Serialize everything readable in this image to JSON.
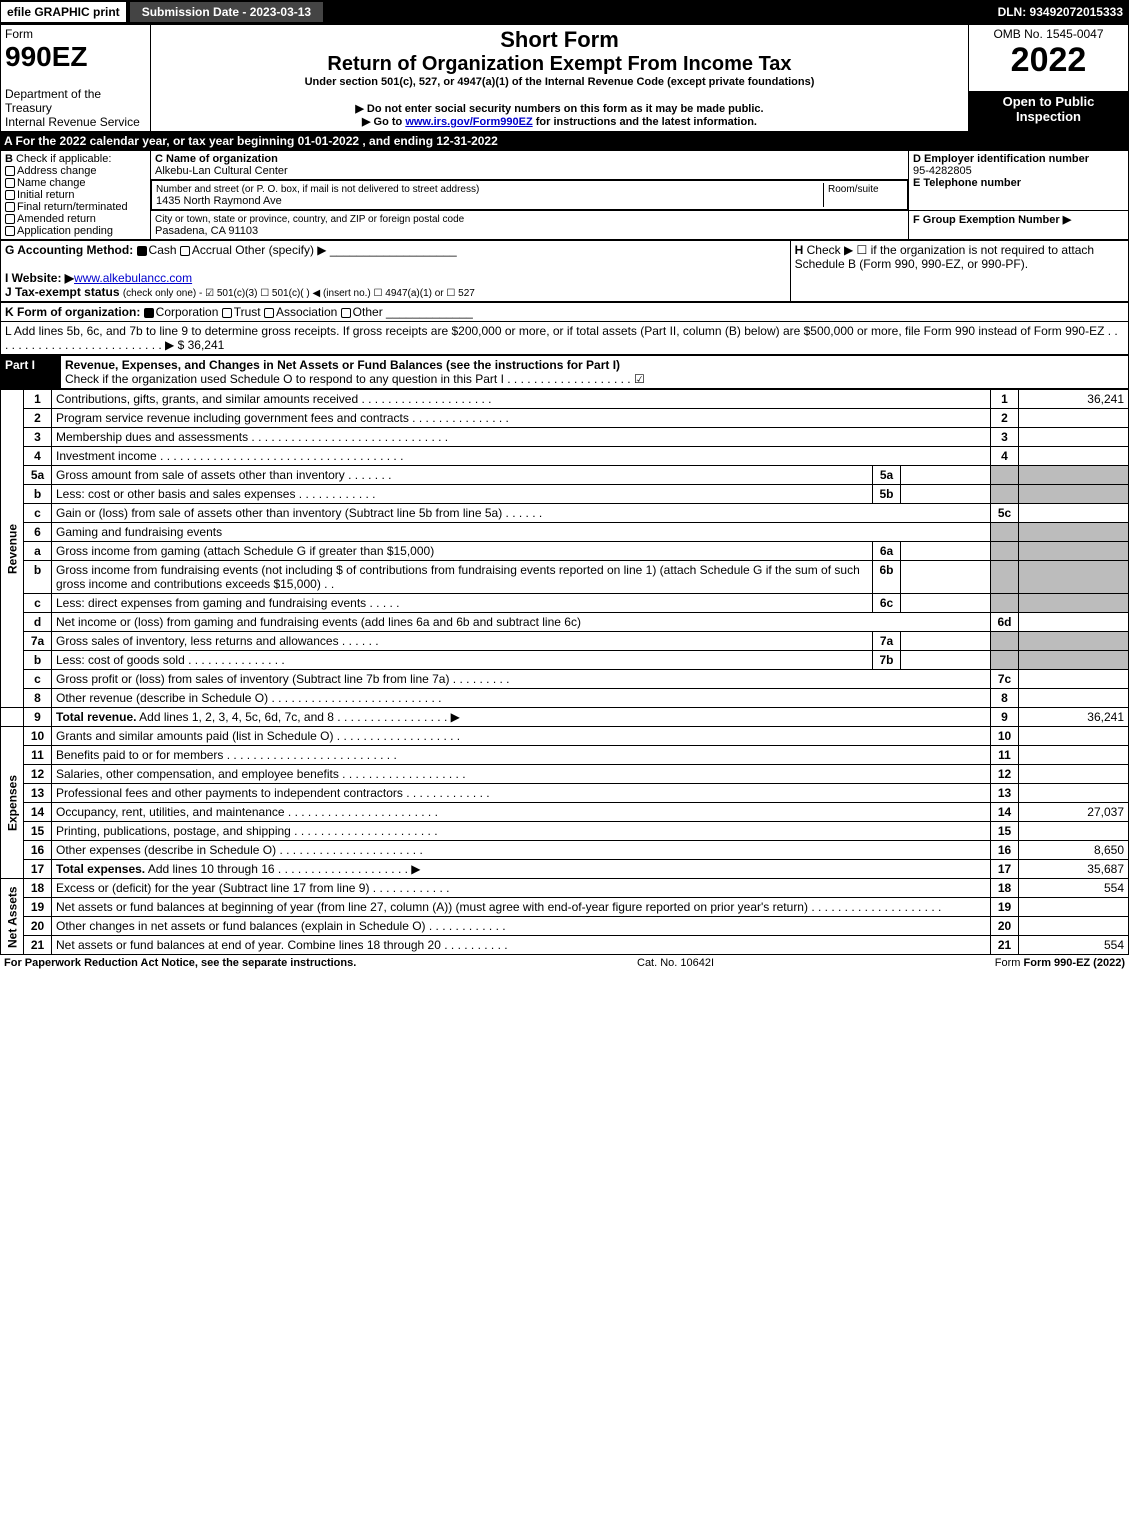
{
  "topbar": {
    "efile": "efile GRAPHIC print",
    "submission": "Submission Date - 2023-03-13",
    "dln": "DLN: 93492072015333"
  },
  "header": {
    "form_word": "Form",
    "form_no": "990EZ",
    "dept": "Department of the Treasury\nInternal Revenue Service",
    "short": "Short Form",
    "title": "Return of Organization Exempt From Income Tax",
    "under": "Under section 501(c), 527, or 4947(a)(1) of the Internal Revenue Code (except private foundations)",
    "ssn": "▶ Do not enter social security numbers on this form as it may be made public.",
    "goto_pre": "▶ Go to ",
    "goto_link": "www.irs.gov/Form990EZ",
    "goto_post": " for instructions and the latest information.",
    "omb": "OMB No. 1545-0047",
    "year": "2022",
    "open": "Open to Public Inspection"
  },
  "A": "A  For the 2022 calendar year, or tax year beginning 01-01-2022 , and ending 12-31-2022",
  "B": {
    "label": "B",
    "check": "Check if applicable:",
    "addr": "Address change",
    "name": "Name change",
    "init": "Initial return",
    "final": "Final return/terminated",
    "amend": "Amended return",
    "app": "Application pending"
  },
  "C": {
    "label": "C Name of organization",
    "org": "Alkebu-Lan Cultural Center",
    "street_lbl": "Number and street (or P. O. box, if mail is not delivered to street address)",
    "street": "1435 North Raymond Ave",
    "room_lbl": "Room/suite",
    "city_lbl": "City or town, state or province, country, and ZIP or foreign postal code",
    "city": "Pasadena, CA  91103"
  },
  "D": {
    "label": "D Employer identification number",
    "ein": "95-4282805"
  },
  "E": {
    "label": "E Telephone number"
  },
  "F": {
    "label": "F Group Exemption Number  ▶"
  },
  "G": {
    "label": "G Accounting Method:",
    "cash": "Cash",
    "accr": "Accrual",
    "other": "Other (specify) ▶"
  },
  "H": {
    "label": "H",
    "text": "Check ▶ ☐ if the organization is not required to attach Schedule B (Form 990, 990-EZ, or 990-PF)."
  },
  "I": {
    "label": "I Website: ▶",
    "site": "www.alkebulancc.com"
  },
  "J": {
    "label": "J Tax-exempt status",
    "tail": "(check only one) - ☑ 501(c)(3) ☐ 501(c)(  ) ◀ (insert no.) ☐ 4947(a)(1) or ☐ 527"
  },
  "K": {
    "label": "K Form of organization:",
    "corp": "Corporation",
    "trust": "Trust",
    "assoc": "Association",
    "other": "Other"
  },
  "L": {
    "text": "L Add lines 5b, 6c, and 7b to line 9 to determine gross receipts. If gross receipts are $200,000 or more, or if total assets (Part II, column (B) below) are $500,000 or more, file Form 990 instead of Form 990-EZ .  .  .  .  .  .  .  .  .  .  .  .  .  .  .  .  .  .  .  .  .  .  .  .  .  . ▶ $ 36,241"
  },
  "partI": {
    "label": "Part I",
    "title": "Revenue, Expenses, and Changes in Net Assets or Fund Balances (see the instructions for Part I)",
    "checkline": "Check if the organization used Schedule O to respond to any question in this Part I .  .  .  .  .  .  .  .  .  .  .  .  .  .  .  .  .  .  . ☑"
  },
  "sections": {
    "revenue": "Revenue",
    "expenses": "Expenses",
    "netassets": "Net Assets"
  },
  "lines": {
    "1": {
      "n": "1",
      "t": "Contributions, gifts, grants, and similar amounts received .  .  .  .  .  .  .  .  .  .  .  .  .  .  .  .  .  .  .  .",
      "r": "1",
      "v": "36,241"
    },
    "2": {
      "n": "2",
      "t": "Program service revenue including government fees and contracts .  .  .  .  .  .  .  .  .  .  .  .  .  .  .",
      "r": "2",
      "v": ""
    },
    "3": {
      "n": "3",
      "t": "Membership dues and assessments .  .  .  .  .  .  .  .  .  .  .  .  .  .  .  .  .  .  .  .  .  .  .  .  .  .  .  .  .  .",
      "r": "3",
      "v": ""
    },
    "4": {
      "n": "4",
      "t": "Investment income .  .  .  .  .  .  .  .  .  .  .  .  .  .  .  .  .  .  .  .  .  .  .  .  .  .  .  .  .  .  .  .  .  .  .  .  .",
      "r": "4",
      "v": ""
    },
    "5a": {
      "n": "5a",
      "t": "Gross amount from sale of assets other than inventory .  .  .  .  .  .  .",
      "m": "5a"
    },
    "5b": {
      "n": "b",
      "t": "Less: cost or other basis and sales expenses .  .  .  .  .  .  .  .  .  .  .  .",
      "m": "5b"
    },
    "5c": {
      "n": "c",
      "t": "Gain or (loss) from sale of assets other than inventory (Subtract line 5b from line 5a) .  .  .  .  .  .",
      "r": "5c",
      "v": ""
    },
    "6": {
      "n": "6",
      "t": "Gaming and fundraising events"
    },
    "6a": {
      "n": "a",
      "t": "Gross income from gaming (attach Schedule G if greater than $15,000)",
      "m": "6a"
    },
    "6b": {
      "n": "b",
      "t": "Gross income from fundraising events (not including $                  of contributions from fundraising events reported on line 1) (attach Schedule G if the sum of such gross income and contributions exceeds $15,000)   .  .",
      "m": "6b"
    },
    "6c": {
      "n": "c",
      "t": "Less: direct expenses from gaming and fundraising events   .  .  .  .  .",
      "m": "6c"
    },
    "6d": {
      "n": "d",
      "t": "Net income or (loss) from gaming and fundraising events (add lines 6a and 6b and subtract line 6c)",
      "r": "6d",
      "v": ""
    },
    "7a": {
      "n": "7a",
      "t": "Gross sales of inventory, less returns and allowances .  .  .  .  .  .",
      "m": "7a"
    },
    "7b": {
      "n": "b",
      "t": "Less: cost of goods sold           .  .  .  .  .  .  .  .  .  .  .  .  .  .  .",
      "m": "7b"
    },
    "7c": {
      "n": "c",
      "t": "Gross profit or (loss) from sales of inventory (Subtract line 7b from line 7a) .  .  .  .  .  .  .  .  .",
      "r": "7c",
      "v": ""
    },
    "8": {
      "n": "8",
      "t": "Other revenue (describe in Schedule O) .  .  .  .  .  .  .  .  .  .  .  .  .  .  .  .  .  .  .  .  .  .  .  .  .  .",
      "r": "8",
      "v": ""
    },
    "9": {
      "n": "9",
      "t": "Total revenue. Add lines 1, 2, 3, 4, 5c, 6d, 7c, and 8  .  .  .  .  .  .  .  .  .  .  .  .  .  .  .  .  . ▶",
      "r": "9",
      "v": "36,241"
    },
    "10": {
      "n": "10",
      "t": "Grants and similar amounts paid (list in Schedule O) .  .  .  .  .  .  .  .  .  .  .  .  .  .  .  .  .  .  .",
      "r": "10",
      "v": ""
    },
    "11": {
      "n": "11",
      "t": "Benefits paid to or for members      .  .  .  .  .  .  .  .  .  .  .  .  .  .  .  .  .  .  .  .  .  .  .  .  .  .",
      "r": "11",
      "v": ""
    },
    "12": {
      "n": "12",
      "t": "Salaries, other compensation, and employee benefits .  .  .  .  .  .  .  .  .  .  .  .  .  .  .  .  .  .  .",
      "r": "12",
      "v": ""
    },
    "13": {
      "n": "13",
      "t": "Professional fees and other payments to independent contractors .  .  .  .  .  .  .  .  .  .  .  .  .",
      "r": "13",
      "v": ""
    },
    "14": {
      "n": "14",
      "t": "Occupancy, rent, utilities, and maintenance .  .  .  .  .  .  .  .  .  .  .  .  .  .  .  .  .  .  .  .  .  .  .",
      "r": "14",
      "v": "27,037"
    },
    "15": {
      "n": "15",
      "t": "Printing, publications, postage, and shipping .  .  .  .  .  .  .  .  .  .  .  .  .  .  .  .  .  .  .  .  .  .",
      "r": "15",
      "v": ""
    },
    "16": {
      "n": "16",
      "t": "Other expenses (describe in Schedule O)      .  .  .  .  .  .  .  .  .  .  .  .  .  .  .  .  .  .  .  .  .  .",
      "r": "16",
      "v": "8,650"
    },
    "17": {
      "n": "17",
      "t": "Total expenses. Add lines 10 through 16     .  .  .  .  .  .  .  .  .  .  .  .  .  .  .  .  .  .  .  . ▶",
      "r": "17",
      "v": "35,687"
    },
    "18": {
      "n": "18",
      "t": "Excess or (deficit) for the year (Subtract line 17 from line 9)        .  .  .  .  .  .  .  .  .  .  .  .",
      "r": "18",
      "v": "554"
    },
    "19": {
      "n": "19",
      "t": "Net assets or fund balances at beginning of year (from line 27, column (A)) (must agree with end-of-year figure reported on prior year's return) .  .  .  .  .  .  .  .  .  .  .  .  .  .  .  .  .  .  .  .",
      "r": "19",
      "v": ""
    },
    "20": {
      "n": "20",
      "t": "Other changes in net assets or fund balances (explain in Schedule O) .  .  .  .  .  .  .  .  .  .  .  .",
      "r": "20",
      "v": ""
    },
    "21": {
      "n": "21",
      "t": "Net assets or fund balances at end of year. Combine lines 18 through 20 .  .  .  .  .  .  .  .  .  .",
      "r": "21",
      "v": "554"
    }
  },
  "footer": {
    "pra": "For Paperwork Reduction Act Notice, see the separate instructions.",
    "cat": "Cat. No. 10642I",
    "form": "Form 990-EZ (2022)"
  }
}
